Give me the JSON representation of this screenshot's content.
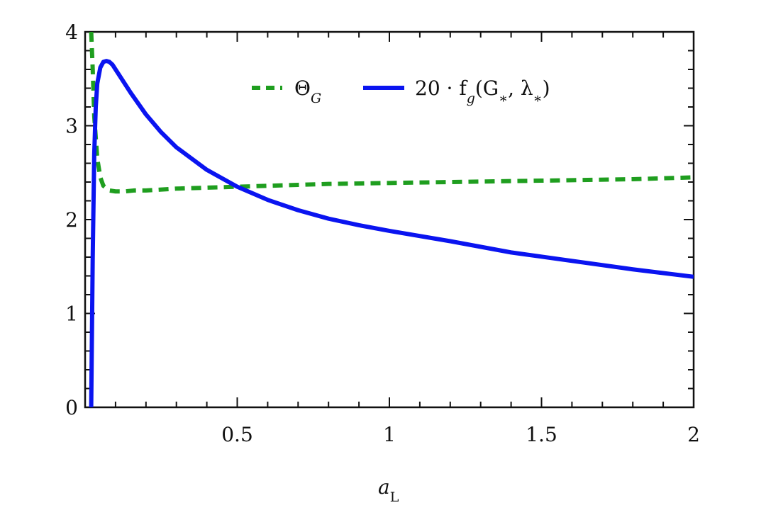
{
  "chart_data": {
    "type": "line",
    "xlabel": "a_L",
    "xlabel_main": "a",
    "xlabel_sub": "L",
    "ylabel": "",
    "xlim": [
      0.0,
      2.0
    ],
    "ylim": [
      0,
      4
    ],
    "x_ticks": [
      0.5,
      1,
      1.5,
      2
    ],
    "x_tick_labels": [
      "0.5",
      "1",
      "1.5",
      "2"
    ],
    "y_ticks": [
      0,
      1,
      2,
      3,
      4
    ],
    "y_tick_labels": [
      "0",
      "1",
      "2",
      "3",
      "4"
    ],
    "grid": false,
    "legend_position": "top-right",
    "series": [
      {
        "name": "Θ_G",
        "legend_main": "Θ",
        "legend_sub": "G",
        "style": "dashed",
        "color": "#1f9e1f",
        "x": [
          0.02,
          0.025,
          0.03,
          0.04,
          0.05,
          0.06,
          0.08,
          0.1,
          0.13,
          0.16,
          0.2,
          0.25,
          0.3,
          0.4,
          0.5,
          0.6,
          0.7,
          0.8,
          1.0,
          1.2,
          1.4,
          1.6,
          1.8,
          2.0
        ],
        "y": [
          4.0,
          3.6,
          3.1,
          2.65,
          2.45,
          2.36,
          2.31,
          2.3,
          2.3,
          2.31,
          2.31,
          2.32,
          2.33,
          2.34,
          2.35,
          2.36,
          2.37,
          2.38,
          2.39,
          2.4,
          2.41,
          2.42,
          2.43,
          2.45
        ]
      },
      {
        "name": "20 · f_g(G_*, λ_*)",
        "legend_text": "20 · f",
        "legend_sub": "g",
        "legend_rest": "(G",
        "legend_star1": "∗",
        "legend_mid": ", λ",
        "legend_star2": "∗",
        "legend_end": ")",
        "style": "solid",
        "color": "#0a14f0",
        "x": [
          0.02,
          0.025,
          0.03,
          0.035,
          0.04,
          0.05,
          0.06,
          0.07,
          0.08,
          0.09,
          0.1,
          0.12,
          0.15,
          0.2,
          0.25,
          0.3,
          0.4,
          0.5,
          0.6,
          0.7,
          0.8,
          0.9,
          1.0,
          1.2,
          1.4,
          1.6,
          1.8,
          2.0
        ],
        "y": [
          0.0,
          1.6,
          2.7,
          3.2,
          3.45,
          3.62,
          3.68,
          3.69,
          3.68,
          3.65,
          3.6,
          3.5,
          3.35,
          3.12,
          2.93,
          2.77,
          2.53,
          2.35,
          2.21,
          2.1,
          2.01,
          1.94,
          1.88,
          1.77,
          1.65,
          1.56,
          1.47,
          1.39
        ]
      }
    ]
  }
}
